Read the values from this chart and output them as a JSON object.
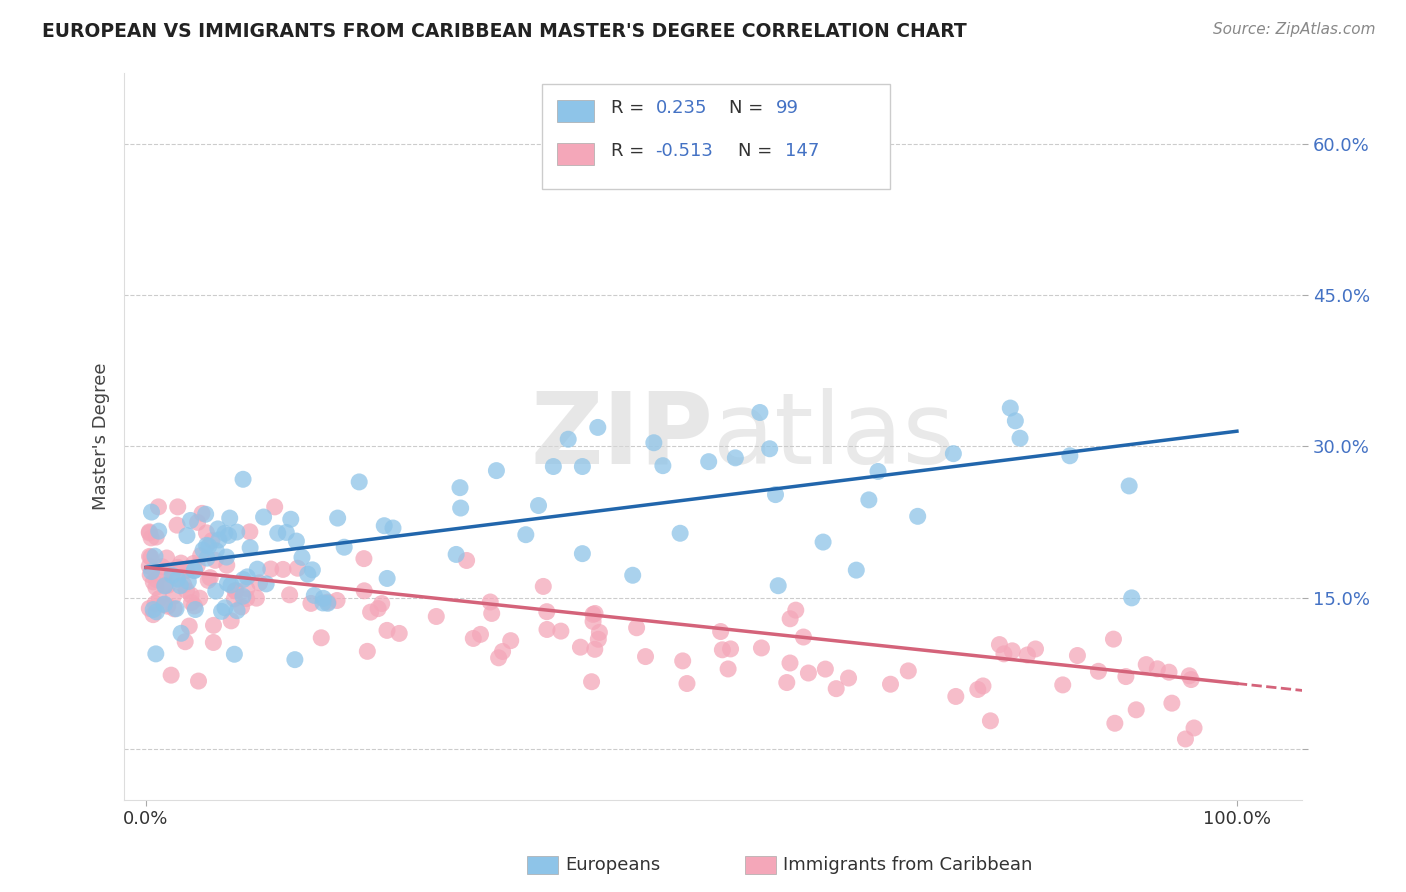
{
  "title": "EUROPEAN VS IMMIGRANTS FROM CARIBBEAN MASTER'S DEGREE CORRELATION CHART",
  "source_text": "Source: ZipAtlas.com",
  "ylabel": "Master's Degree",
  "color_european": "#8ec4e8",
  "color_caribbean": "#f4a7b9",
  "color_line_european": "#2166ac",
  "color_line_caribbean": "#d4637a",
  "watermark_zip": "ZIP",
  "watermark_atlas": "atlas",
  "background_color": "#ffffff",
  "grid_color": "#cccccc",
  "tick_color": "#4472c4",
  "r1": "0.235",
  "n1": "99",
  "r2": "-0.513",
  "n2": "147"
}
